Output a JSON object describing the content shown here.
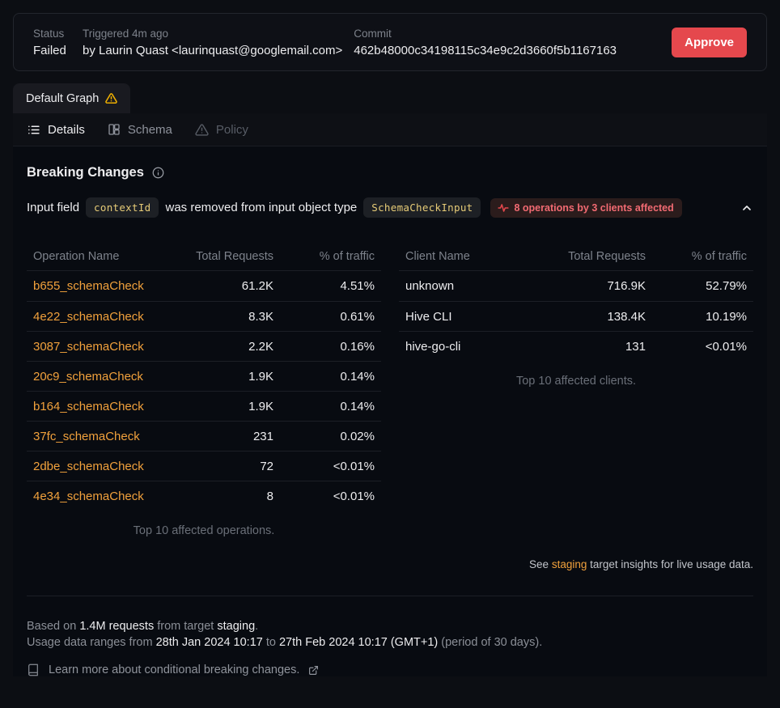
{
  "header": {
    "status_label": "Status",
    "status_value": "Failed",
    "triggered_label": "Triggered 4m ago",
    "triggered_by": "by Laurin Quast <laurinquast@googlemail.com>",
    "commit_label": "Commit",
    "commit_value": "462b48000c34198115c34e9c2d3660f5b1167163",
    "approve_label": "Approve"
  },
  "tabs": {
    "graph_tab_label": "Default Graph",
    "nav": {
      "details": "Details",
      "schema": "Schema",
      "policy": "Policy"
    }
  },
  "breaking_changes": {
    "title": "Breaking Changes",
    "change": {
      "prefix": "Input field",
      "field_code": "contextId",
      "middle": "was removed from input object type",
      "type_code": "SchemaCheckInput",
      "affected_label": "8 operations by 3 clients affected"
    }
  },
  "operations_table": {
    "headers": [
      "Operation Name",
      "Total Requests",
      "% of traffic"
    ],
    "rows": [
      {
        "name": "b655_schemaCheck",
        "requests": "61.2K",
        "traffic": "4.51%"
      },
      {
        "name": "4e22_schemaCheck",
        "requests": "8.3K",
        "traffic": "0.61%"
      },
      {
        "name": "3087_schemaCheck",
        "requests": "2.2K",
        "traffic": "0.16%"
      },
      {
        "name": "20c9_schemaCheck",
        "requests": "1.9K",
        "traffic": "0.14%"
      },
      {
        "name": "b164_schemaCheck",
        "requests": "1.9K",
        "traffic": "0.14%"
      },
      {
        "name": "37fc_schemaCheck",
        "requests": "231",
        "traffic": "0.02%"
      },
      {
        "name": "2dbe_schemaCheck",
        "requests": "72",
        "traffic": "<0.01%"
      },
      {
        "name": "4e34_schemaCheck",
        "requests": "8",
        "traffic": "<0.01%"
      }
    ],
    "caption": "Top 10 affected operations."
  },
  "clients_table": {
    "headers": [
      "Client Name",
      "Total Requests",
      "% of traffic"
    ],
    "rows": [
      {
        "name": "unknown",
        "requests": "716.9K",
        "traffic": "52.79%"
      },
      {
        "name": "Hive CLI",
        "requests": "138.4K",
        "traffic": "10.19%"
      },
      {
        "name": "hive-go-cli",
        "requests": "131",
        "traffic": "<0.01%"
      }
    ],
    "caption": "Top 10 affected clients."
  },
  "insights_note": {
    "prefix": "See ",
    "link": "staging",
    "suffix": " target insights for live usage data."
  },
  "footer": {
    "line1_t1": "Based on ",
    "line1_b1": "1.4M requests",
    "line1_t2": " from target ",
    "line1_b2": "staging",
    "line1_t3": ".",
    "line2_t1": "Usage data ranges from ",
    "line2_b1": "28th Jan 2024 10:17",
    "line2_t2": " to ",
    "line2_b2": "27th Feb 2024 10:17 (GMT+1)",
    "line2_t3": " (period of 30 days).",
    "learn_more": "Learn more about conditional breaking changes."
  },
  "colors": {
    "approve_button": "#e5484d",
    "warning_yellow": "#f0b000",
    "operation_link": "#f1a13c",
    "affected_badge_text": "#f16a72",
    "code_badge_text": "#e6cb77"
  },
  "icons": {
    "tab_warning": "warning-triangle-icon",
    "details": "list-icon",
    "schema": "schema-columns-icon",
    "policy": "alert-triangle-icon",
    "info": "info-circle-icon",
    "affected": "activity-pulse-icon",
    "collapse": "chevron-up-icon",
    "learn": "book-icon",
    "external": "external-link-icon"
  }
}
